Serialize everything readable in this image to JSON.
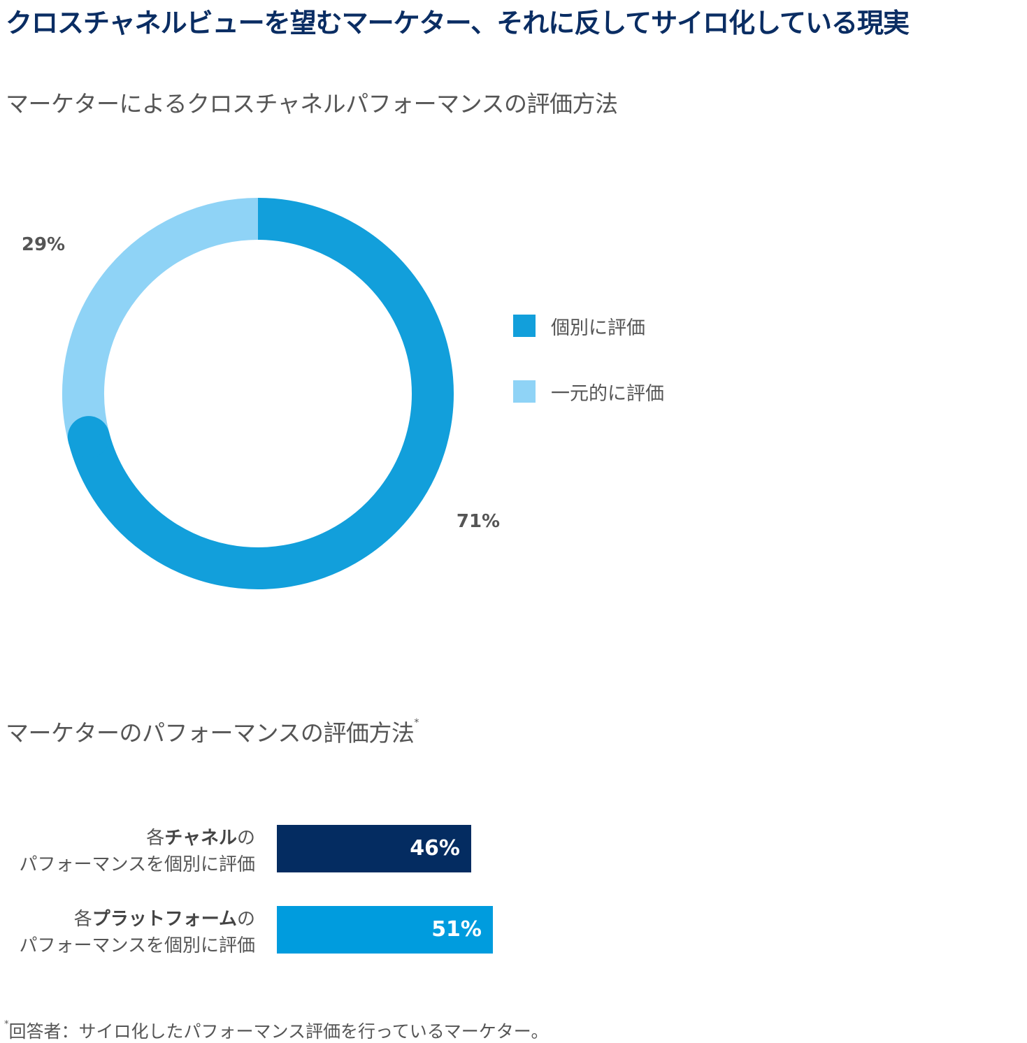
{
  "page_title": "クロスチャネルビューを望むマーケター、それに反してサイロ化している現実",
  "colors": {
    "title": "#0a2d63",
    "donut_individual": "#129fdb",
    "donut_unified": "#8fd3f6",
    "bar_channel": "#042c61",
    "bar_platform": "#009cde"
  },
  "chart_data": [
    {
      "type": "pie",
      "subtype": "donut",
      "title": "マーケターによるクロスチャネルパフォーマンスの評価方法",
      "categories": [
        "個別に評価",
        "一元的に評価"
      ],
      "values": [
        71,
        29
      ],
      "labels": [
        "71%",
        "29%"
      ],
      "colors": [
        "#129fdb",
        "#8fd3f6"
      ],
      "legend_position": "right",
      "legend": [
        "個別に評価",
        "一元的に評価"
      ]
    },
    {
      "type": "bar",
      "orientation": "horizontal",
      "title": "マーケターのパフォーマンスの評価方法",
      "title_marker": "*",
      "categories": [
        {
          "prefix": "各",
          "bold": "チャネル",
          "suffix": "の",
          "line2": "パフォーマンスを個別に評価"
        },
        {
          "prefix": "各",
          "bold": "プラットフォーム",
          "suffix": "の",
          "line2": "パフォーマンスを個別に評価"
        }
      ],
      "values": [
        46,
        51
      ],
      "labels": [
        "46%",
        "51%"
      ],
      "colors": [
        "#042c61",
        "#009cde"
      ],
      "xlim": [
        0,
        100
      ]
    }
  ],
  "footnote": {
    "marker": "*",
    "text": "回答者：サイロ化したパフォーマンス評価を行っているマーケター。"
  }
}
